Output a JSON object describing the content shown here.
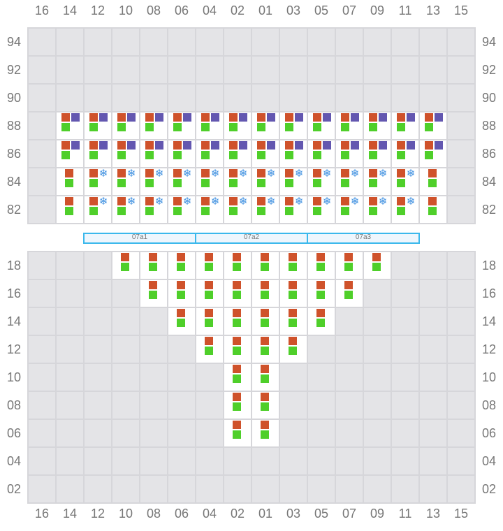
{
  "columns": [
    "16",
    "14",
    "12",
    "10",
    "08",
    "06",
    "04",
    "02",
    "01",
    "03",
    "05",
    "07",
    "09",
    "11",
    "13",
    "15"
  ],
  "colors": {
    "orange": "#cf522b",
    "purple": "#6357b0",
    "green": "#4fcf2a",
    "reefer": "#3d8fe0"
  },
  "deck": {
    "rows": [
      "94",
      "92",
      "90",
      "88",
      "86",
      "84",
      "82"
    ],
    "occupied": [
      {
        "row": "88",
        "cols": [
          "14",
          "12",
          "10",
          "08",
          "06",
          "04",
          "02",
          "01",
          "03",
          "05",
          "07",
          "09",
          "11",
          "13"
        ],
        "type": "orange-purple-green"
      },
      {
        "row": "86",
        "cols": [
          "14",
          "12",
          "10",
          "08",
          "06",
          "04",
          "02",
          "01",
          "03",
          "05",
          "07",
          "09",
          "11",
          "13"
        ],
        "type": "orange-purple-green"
      },
      {
        "row": "84",
        "cols": [
          "12",
          "10",
          "08",
          "06",
          "04",
          "02",
          "01",
          "03",
          "05",
          "07",
          "09",
          "11"
        ],
        "type": "reefer"
      },
      {
        "row": "84",
        "cols": [
          "14",
          "13"
        ],
        "type": "orange-green"
      },
      {
        "row": "82",
        "cols": [
          "12",
          "10",
          "08",
          "06",
          "04",
          "02",
          "01",
          "03",
          "05",
          "07",
          "09",
          "11"
        ],
        "type": "reefer"
      },
      {
        "row": "82",
        "cols": [
          "14",
          "13"
        ],
        "type": "orange-green"
      }
    ]
  },
  "hatch_segments": [
    {
      "label": "07a1"
    },
    {
      "label": "07a2"
    },
    {
      "label": "07a3"
    }
  ],
  "hold": {
    "rows": [
      "18",
      "16",
      "14",
      "12",
      "10",
      "08",
      "06",
      "04",
      "02"
    ],
    "occupied": [
      {
        "row": "18",
        "cols": [
          "10",
          "08",
          "06",
          "04",
          "02",
          "01",
          "03",
          "05",
          "07",
          "09"
        ],
        "type": "orange-green"
      },
      {
        "row": "16",
        "cols": [
          "08",
          "06",
          "04",
          "02",
          "01",
          "03",
          "05",
          "07"
        ],
        "type": "orange-green"
      },
      {
        "row": "14",
        "cols": [
          "06",
          "04",
          "02",
          "01",
          "03",
          "05"
        ],
        "type": "orange-green"
      },
      {
        "row": "12",
        "cols": [
          "04",
          "02",
          "01",
          "03"
        ],
        "type": "orange-green"
      },
      {
        "row": "10",
        "cols": [
          "02",
          "01"
        ],
        "type": "orange-green"
      },
      {
        "row": "08",
        "cols": [
          "02",
          "01"
        ],
        "type": "orange-green"
      },
      {
        "row": "06",
        "cols": [
          "02",
          "01"
        ],
        "type": "orange-green"
      }
    ]
  },
  "reefer_glyph": "❄"
}
